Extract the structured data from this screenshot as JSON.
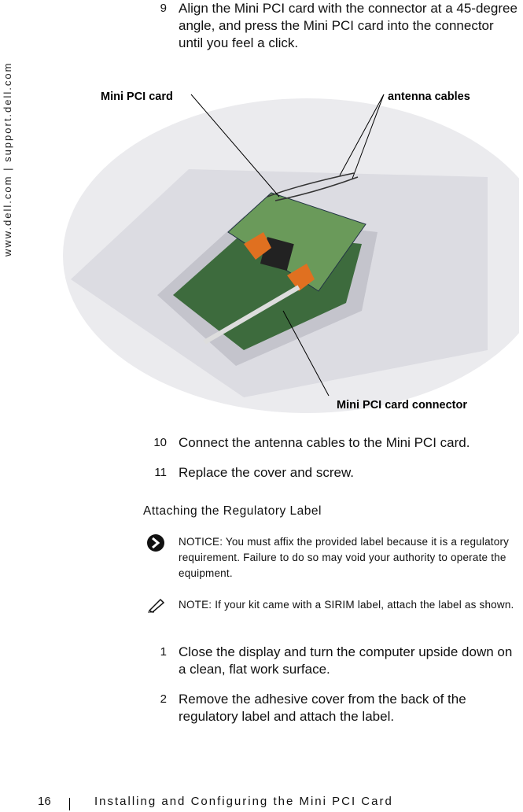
{
  "sidebar": "www.dell.com | support.dell.com",
  "steps_a": [
    {
      "number": "9",
      "text": "Align the Mini PCI card with the connector at a 45-degree angle, and press the Mini PCI card into the connector until you feel a click."
    }
  ],
  "figure": {
    "labels": [
      "Mini PCI card",
      "antenna cables",
      "Mini PCI card connector"
    ]
  },
  "steps_b": [
    {
      "number": "10",
      "text": "Connect the antenna cables to the Mini PCI card."
    },
    {
      "number": "11",
      "text": "Replace the cover and screw."
    }
  ],
  "section": {
    "heading": "Attaching the Regulatory Label",
    "notice": {
      "label": "NOTICE:",
      "text": "You must affix the provided label because it is a regulatory requirement. Failure to do so may void your authority to operate the equipment."
    },
    "note": {
      "label": "NOTE:",
      "text": "If your kit came with a SIRIM label, attach the label as shown."
    },
    "steps": [
      {
        "number": "1",
        "text": "Close the display and turn the computer upside down on a clean, flat work surface."
      },
      {
        "number": "2",
        "text": "Remove the adhesive cover from the back of the regulatory label and attach the label."
      }
    ]
  },
  "footer": {
    "page": "16",
    "title": "Installing and Configuring the Mini PCI Card"
  }
}
